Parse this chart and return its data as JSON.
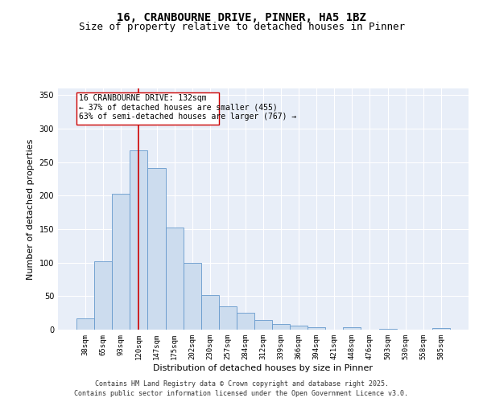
{
  "title_line1": "16, CRANBOURNE DRIVE, PINNER, HA5 1BZ",
  "title_line2": "Size of property relative to detached houses in Pinner",
  "xlabel": "Distribution of detached houses by size in Pinner",
  "ylabel": "Number of detached properties",
  "categories": [
    "38sqm",
    "65sqm",
    "93sqm",
    "120sqm",
    "147sqm",
    "175sqm",
    "202sqm",
    "230sqm",
    "257sqm",
    "284sqm",
    "312sqm",
    "339sqm",
    "366sqm",
    "394sqm",
    "421sqm",
    "448sqm",
    "476sqm",
    "503sqm",
    "530sqm",
    "558sqm",
    "585sqm"
  ],
  "values": [
    17,
    102,
    203,
    268,
    241,
    152,
    100,
    52,
    35,
    25,
    14,
    9,
    6,
    4,
    0,
    4,
    0,
    1,
    0,
    0,
    2
  ],
  "bar_color": "#ccdcee",
  "bar_edge_color": "#6699cc",
  "vline_color": "#cc0000",
  "vline_x_index": 3,
  "annotation_title": "16 CRANBOURNE DRIVE: 132sqm",
  "annotation_line2": "← 37% of detached houses are smaller (455)",
  "annotation_line3": "63% of semi-detached houses are larger (767) →",
  "annotation_box_color": "#cc0000",
  "ylim": [
    0,
    360
  ],
  "yticks": [
    0,
    50,
    100,
    150,
    200,
    250,
    300,
    350
  ],
  "bg_color": "#e8eef8",
  "footer_line1": "Contains HM Land Registry data © Crown copyright and database right 2025.",
  "footer_line2": "Contains public sector information licensed under the Open Government Licence v3.0.",
  "title_fontsize": 10,
  "subtitle_fontsize": 9,
  "tick_fontsize": 6.5,
  "ylabel_fontsize": 8,
  "xlabel_fontsize": 8,
  "annotation_fontsize": 7,
  "footer_fontsize": 6
}
